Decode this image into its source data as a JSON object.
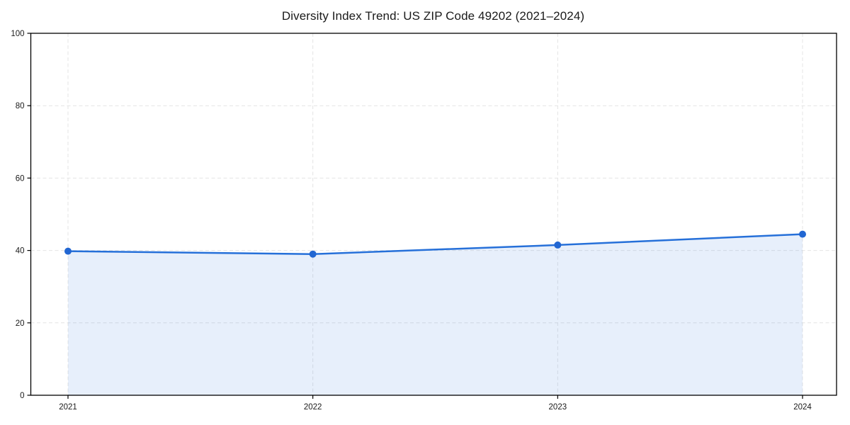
{
  "chart_data": {
    "type": "area",
    "title": "Diversity Index Trend: US ZIP Code 49202 (2021–2024)",
    "categories": [
      "2021",
      "2022",
      "2023",
      "2024"
    ],
    "series": [
      {
        "name": "Diversity Index",
        "values": [
          39.8,
          39.0,
          41.5,
          44.5
        ]
      }
    ],
    "xlabel": "",
    "ylabel": "",
    "ylim": [
      0,
      100
    ],
    "yticks": [
      0,
      20,
      40,
      60,
      80,
      100
    ],
    "grid": true,
    "grid_style": "dashed",
    "legend_position": "none",
    "colors": {
      "line": "#2670d9",
      "marker": "#2166d2",
      "fill": "#2670d9",
      "fill_opacity": 0.11,
      "grid": "#e4e4e4",
      "spine": "#000000",
      "tick_text": "#1a1a1a",
      "title_text": "#1a1a1a",
      "background": "#ffffff"
    }
  }
}
